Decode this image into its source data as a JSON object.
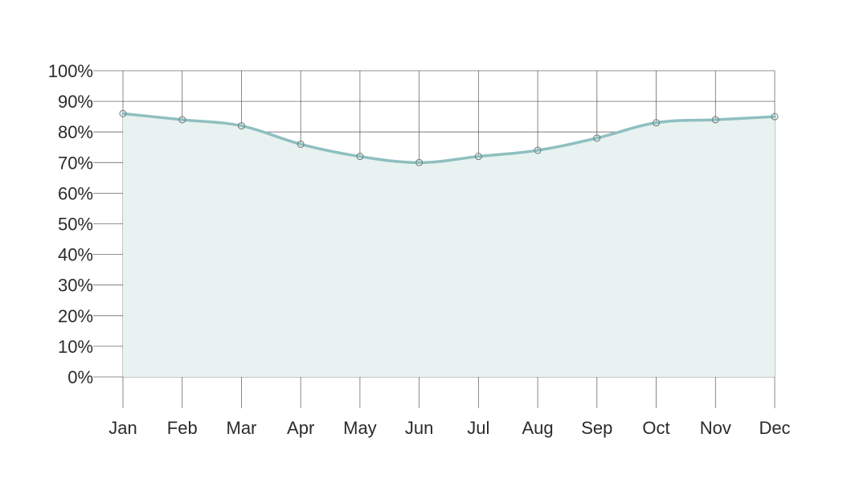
{
  "chart_data": {
    "type": "area",
    "categories": [
      "Jan",
      "Feb",
      "Mar",
      "Apr",
      "May",
      "Jun",
      "Jul",
      "Aug",
      "Sep",
      "Oct",
      "Nov",
      "Dec"
    ],
    "series": [
      {
        "values": [
          86,
          84,
          82,
          76,
          72,
          70,
          72,
          74,
          78,
          83,
          84,
          85
        ]
      }
    ],
    "y_ticks": [
      "0%",
      "10%",
      "20%",
      "30%",
      "40%",
      "50%",
      "60%",
      "70%",
      "80%",
      "90%",
      "100%"
    ],
    "ylim": [
      0,
      100
    ],
    "grid": true,
    "legend": "none",
    "colors": {
      "line": "#8fbfc0",
      "fill": "#e8f2f1",
      "marker_stroke": "#6b7b7b",
      "grid": "#3a3a3a"
    }
  }
}
